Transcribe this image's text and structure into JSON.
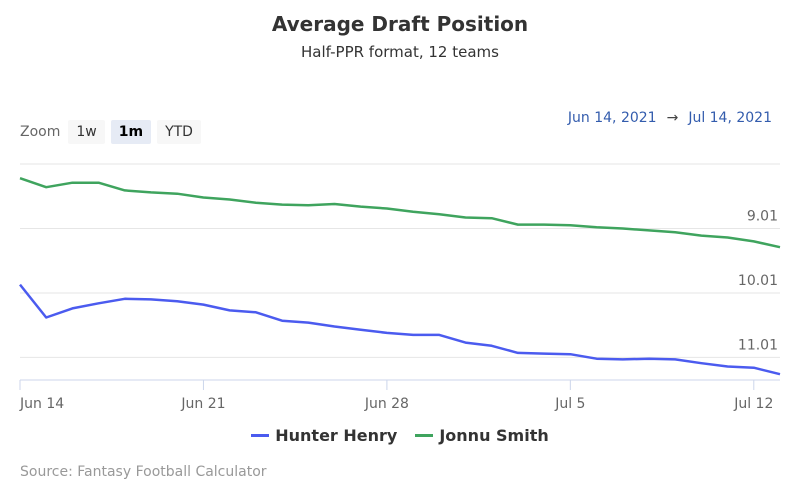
{
  "chart_data": {
    "type": "line",
    "title": "Average Draft Position",
    "subtitle": "Half-PPR format, 12 teams",
    "y_reversed": true,
    "ylim": [
      8.01,
      11.36
    ],
    "y_ticks": [
      "9.01",
      "10.01",
      "11.01"
    ],
    "y_tick_values": [
      9.01,
      10.01,
      11.01
    ],
    "x_ticks": [
      "Jun 14",
      "Jun 21",
      "Jun 28",
      "Jul 5",
      "Jul 12"
    ],
    "x_tick_dates": [
      "2021-06-14",
      "2021-06-21",
      "2021-06-28",
      "2021-07-05",
      "2021-07-12"
    ],
    "xlim": [
      "2021-06-14",
      "2021-07-13"
    ],
    "grid": true,
    "legend_position": "bottom",
    "x": [
      "2021-06-14",
      "2021-06-15",
      "2021-06-16",
      "2021-06-17",
      "2021-06-18",
      "2021-06-19",
      "2021-06-20",
      "2021-06-21",
      "2021-06-22",
      "2021-06-23",
      "2021-06-24",
      "2021-06-25",
      "2021-06-26",
      "2021-06-27",
      "2021-06-28",
      "2021-06-29",
      "2021-06-30",
      "2021-07-01",
      "2021-07-02",
      "2021-07-03",
      "2021-07-04",
      "2021-07-05",
      "2021-07-06",
      "2021-07-07",
      "2021-07-08",
      "2021-07-09",
      "2021-07-10",
      "2021-07-11",
      "2021-07-12",
      "2021-07-13"
    ],
    "series": [
      {
        "name": "Hunter Henry",
        "color": "#4b5bef",
        "values": [
          9.88,
          10.39,
          10.25,
          10.17,
          10.1,
          10.11,
          10.14,
          10.19,
          10.28,
          10.31,
          10.44,
          10.47,
          10.53,
          10.58,
          10.63,
          10.66,
          10.66,
          10.78,
          10.83,
          10.94,
          10.95,
          10.96,
          11.03,
          11.04,
          11.03,
          11.04,
          11.1,
          11.15,
          11.17,
          11.27
        ]
      },
      {
        "name": "Jonnu Smith",
        "color": "#3fa45e",
        "values": [
          8.23,
          8.37,
          8.3,
          8.3,
          8.42,
          8.45,
          8.47,
          8.53,
          8.56,
          8.61,
          8.64,
          8.65,
          8.63,
          8.67,
          8.7,
          8.75,
          8.79,
          8.84,
          8.85,
          8.95,
          8.95,
          8.96,
          8.99,
          9.01,
          9.04,
          9.07,
          9.12,
          9.15,
          9.21,
          9.3
        ]
      }
    ]
  },
  "zoom": {
    "label": "Zoom",
    "buttons": [
      "1w",
      "1m",
      "YTD"
    ],
    "active": "1m"
  },
  "range": {
    "from": "Jun 14, 2021",
    "arrow": "→",
    "to": "Jul 14, 2021"
  },
  "credits": "Source: Fantasy Football Calculator"
}
